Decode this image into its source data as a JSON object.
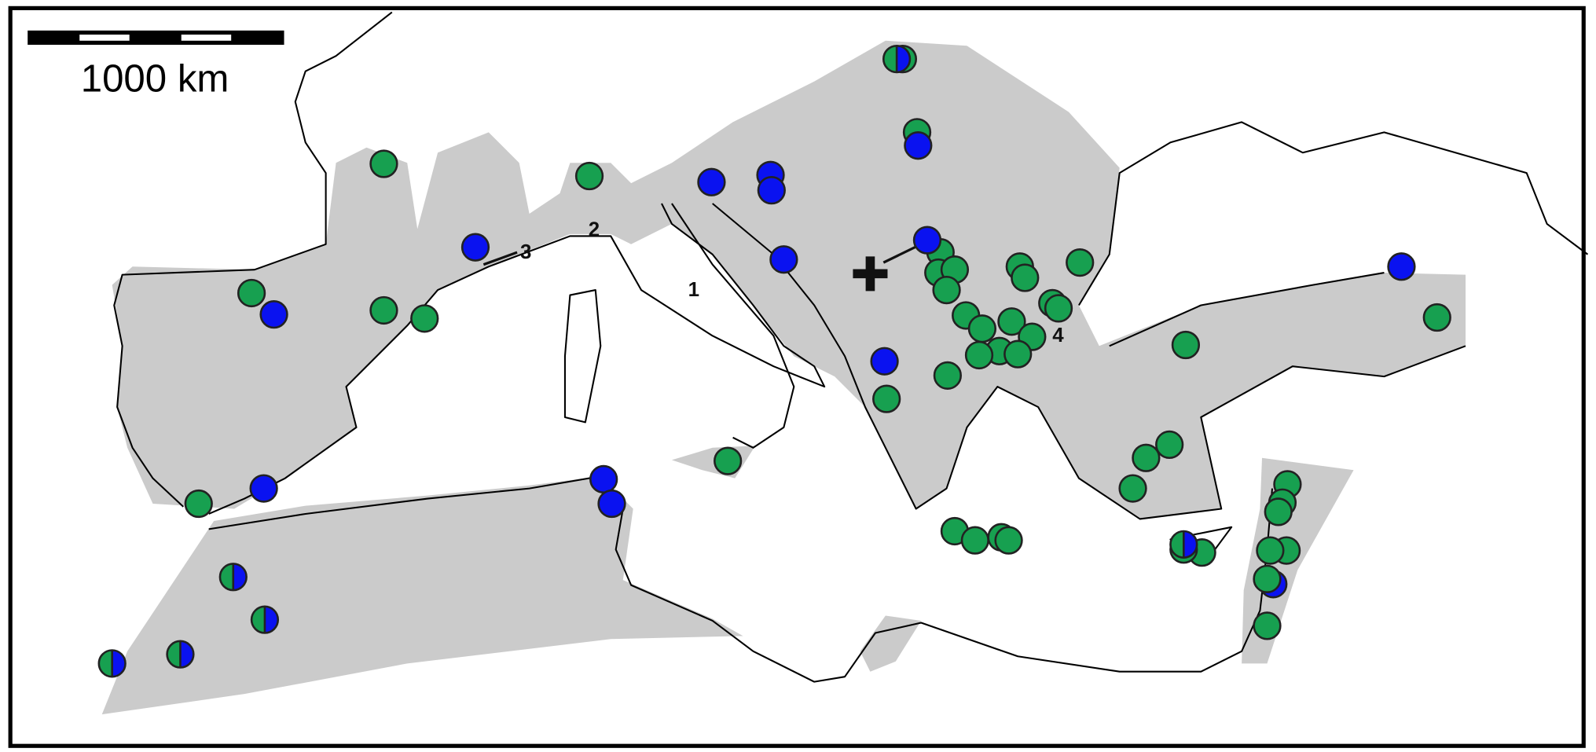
{
  "scale_bar": {
    "label": "1000 km"
  },
  "labels": [
    "1",
    "2",
    "3",
    "4"
  ]
}
